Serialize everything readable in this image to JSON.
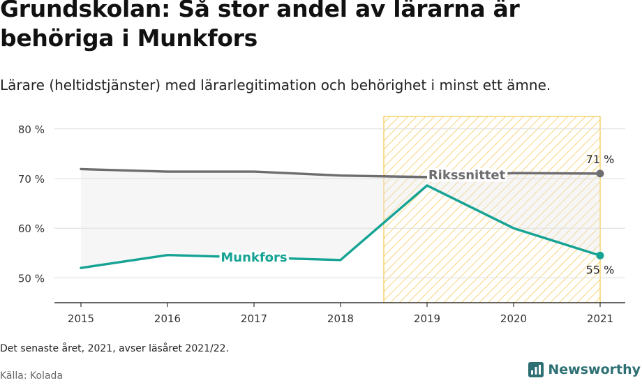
{
  "header": {
    "title": "Grundskolan: Så stor andel av lärarna är behöriga i Munkfors",
    "subtitle": "Lärare (heltidstjänster) med lärarlegitimation och behörighet i minst ett ämne."
  },
  "chart_data": {
    "type": "line",
    "x": [
      "2015",
      "2016",
      "2017",
      "2018",
      "2019",
      "2020",
      "2021"
    ],
    "series": [
      {
        "name": "Rikssnittet",
        "values": [
          71.9,
          71.4,
          71.4,
          70.6,
          70.3,
          71.1,
          71.0
        ],
        "color": "#6d6d70"
      },
      {
        "name": "Munkfors",
        "values": [
          52.0,
          54.6,
          54.1,
          53.6,
          68.6,
          60.0,
          54.5
        ],
        "color": "#16a394"
      }
    ],
    "end_labels": [
      "71 %",
      "55 %"
    ],
    "y_ticks": [
      "80 %",
      "70 %",
      "60 %",
      "50 %"
    ],
    "ylim": [
      45,
      82.5
    ],
    "highlight": {
      "from": "2019",
      "to": "2021",
      "color": "#f5c542"
    },
    "grid": true
  },
  "footer": {
    "note": "Det senaste året, 2021, avser läsåret 2021/22.",
    "source": "Källa: Kolada",
    "brand": "Newsworthy"
  }
}
